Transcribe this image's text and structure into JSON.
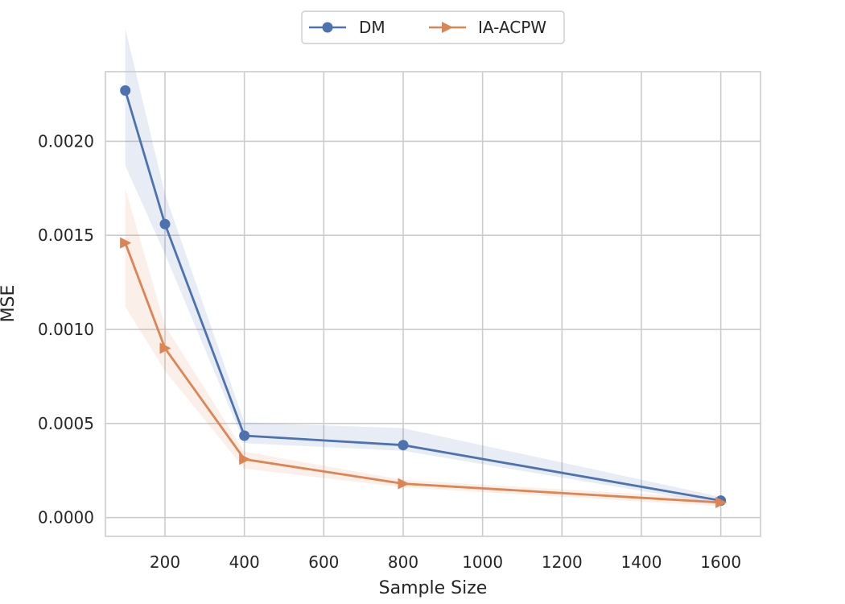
{
  "chart_data": {
    "type": "line",
    "title": "",
    "xlabel": "Sample Size",
    "ylabel": "MSE",
    "xlim": [
      50,
      1700
    ],
    "ylim": [
      -0.0001,
      0.00237
    ],
    "xticks": [
      200,
      400,
      600,
      800,
      1000,
      1200,
      1400,
      1600
    ],
    "xtick_labels": [
      "200",
      "400",
      "600",
      "800",
      "1000",
      "1200",
      "1400",
      "1600"
    ],
    "yticks": [
      0.0,
      0.0005,
      0.001,
      0.0015,
      0.002
    ],
    "ytick_labels": [
      "0.0000",
      "0.0005",
      "0.0010",
      "0.0015",
      "0.0020"
    ],
    "grid": true,
    "legend_position": "top-center",
    "x": [
      100,
      200,
      400,
      800,
      1600
    ],
    "series": [
      {
        "name": "DM",
        "color": "#4c72b0",
        "marker": "circle",
        "values": [
          0.00227,
          0.00156,
          0.000435,
          0.000385,
          9e-05
        ],
        "band_low": [
          0.00187,
          0.0014,
          0.000395,
          0.000355,
          7e-05
        ],
        "band_high": [
          0.0026,
          0.00172,
          0.000505,
          0.000475,
          0.00011
        ]
      },
      {
        "name": "IA-ACPW",
        "color": "#dd8452",
        "marker": "triangle-right",
        "values": [
          0.00146,
          0.0009,
          0.00031,
          0.00018,
          8e-05
        ],
        "band_low": [
          0.00112,
          0.00078,
          0.00026,
          0.00016,
          6e-05
        ],
        "band_high": [
          0.00175,
          0.00102,
          0.00035,
          0.0002,
          0.0001
        ]
      }
    ]
  }
}
